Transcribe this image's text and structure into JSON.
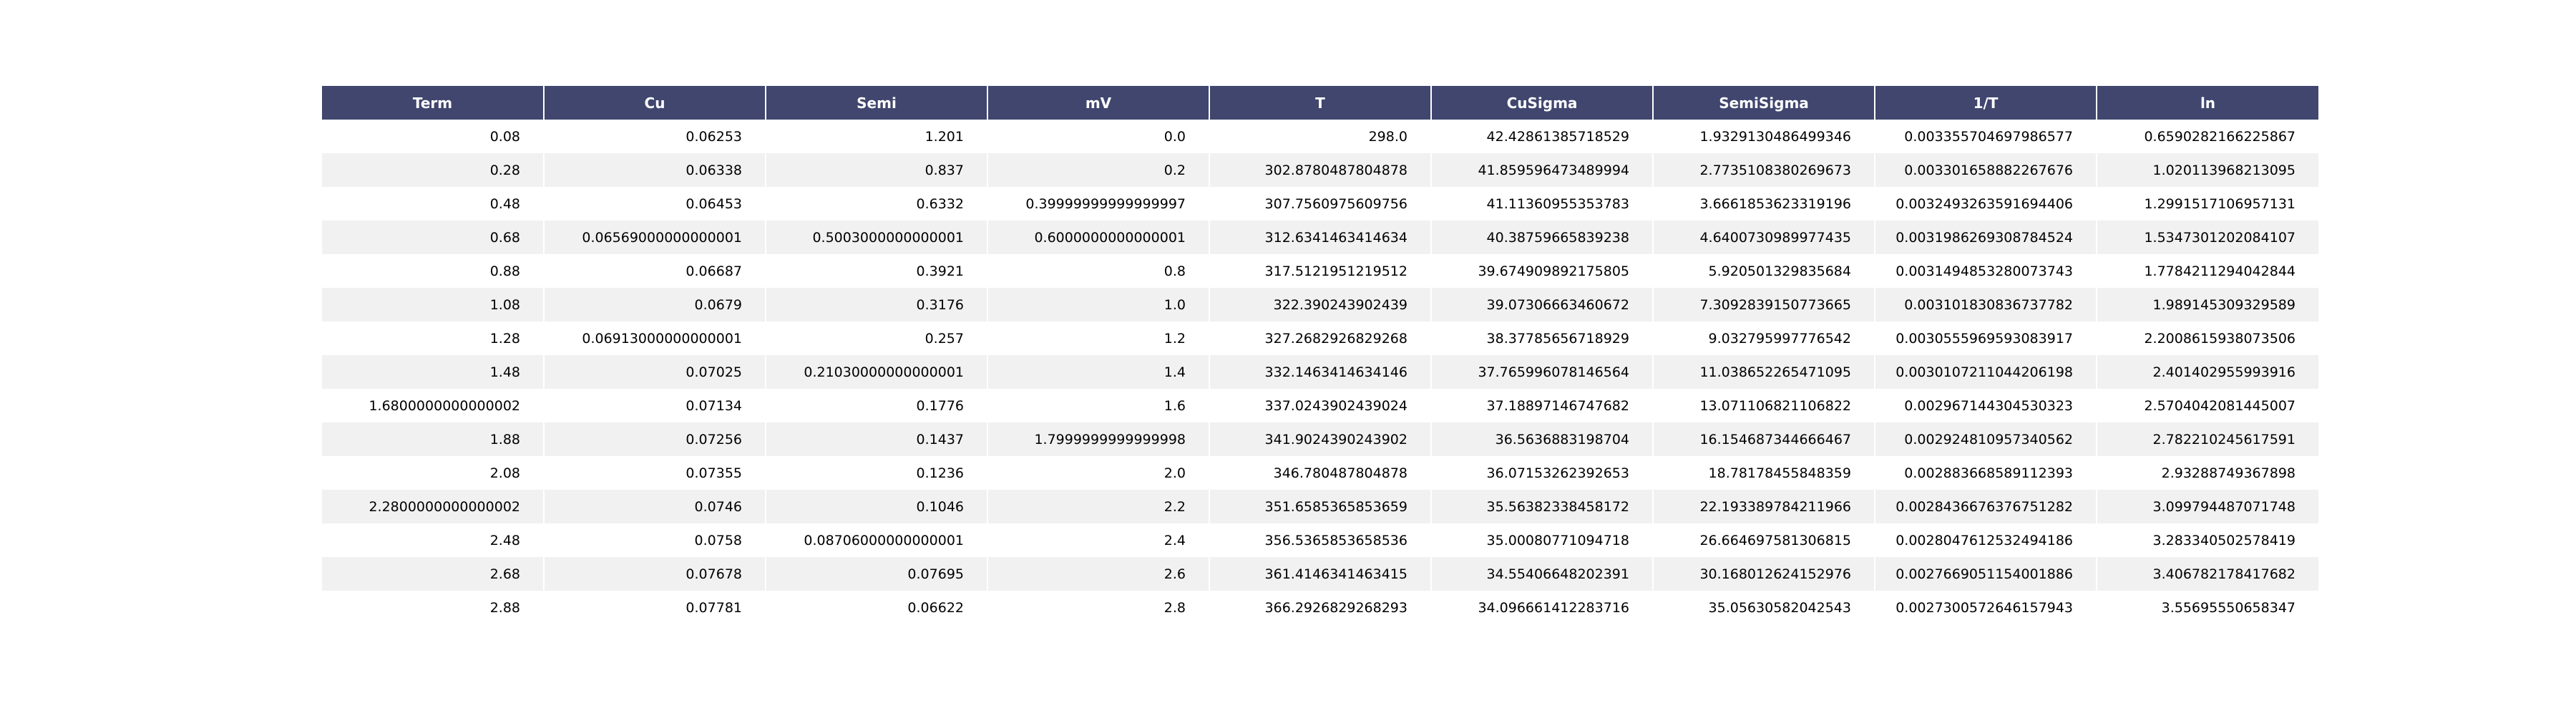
{
  "chart_data": {
    "type": "table",
    "columns": [
      "Term",
      "Cu",
      "Semi",
      "mV",
      "T",
      "CuSigma",
      "SemiSigma",
      "1/T",
      "ln"
    ],
    "rows": [
      [
        "0.08",
        "0.06253",
        "1.201",
        "0.0",
        "298.0",
        "42.42861385718529",
        "1.9329130486499346",
        "0.003355704697986577",
        "0.6590282166225867"
      ],
      [
        "0.28",
        "0.06338",
        "0.837",
        "0.2",
        "302.8780487804878",
        "41.859596473489994",
        "2.7735108380269673",
        "0.003301658882267676",
        "1.020113968213095"
      ],
      [
        "0.48",
        "0.06453",
        "0.6332",
        "0.39999999999999997",
        "307.7560975609756",
        "41.11360955353783",
        "3.6661853623319196",
        "0.0032493263591694406",
        "1.2991517106957131"
      ],
      [
        "0.68",
        "0.06569000000000001",
        "0.5003000000000001",
        "0.6000000000000001",
        "312.6341463414634",
        "40.38759665839238",
        "4.6400730989977435",
        "0.0031986269308784524",
        "1.5347301202084107"
      ],
      [
        "0.88",
        "0.06687",
        "0.3921",
        "0.8",
        "317.5121951219512",
        "39.674909892175805",
        "5.920501329835684",
        "0.0031494853280073743",
        "1.7784211294042844"
      ],
      [
        "1.08",
        "0.0679",
        "0.3176",
        "1.0",
        "322.390243902439",
        "39.07306663460672",
        "7.3092839150773665",
        "0.003101830836737782",
        "1.989145309329589"
      ],
      [
        "1.28",
        "0.06913000000000001",
        "0.257",
        "1.2",
        "327.2682926829268",
        "38.37785656718929",
        "9.032795997776542",
        "0.0030555969593083917",
        "2.2008615938073506"
      ],
      [
        "1.48",
        "0.07025",
        "0.21030000000000001",
        "1.4",
        "332.1463414634146",
        "37.765996078146564",
        "11.038652265471095",
        "0.0030107211044206198",
        "2.401402955993916"
      ],
      [
        "1.6800000000000002",
        "0.07134",
        "0.1776",
        "1.6",
        "337.0243902439024",
        "37.18897146747682",
        "13.071106821106822",
        "0.002967144304530323",
        "2.5704042081445007"
      ],
      [
        "1.88",
        "0.07256",
        "0.1437",
        "1.7999999999999998",
        "341.9024390243902",
        "36.5636883198704",
        "16.154687344666467",
        "0.002924810957340562",
        "2.782210245617591"
      ],
      [
        "2.08",
        "0.07355",
        "0.1236",
        "2.0",
        "346.780487804878",
        "36.07153262392653",
        "18.78178455848359",
        "0.002883668589112393",
        "2.93288749367898"
      ],
      [
        "2.2800000000000002",
        "0.0746",
        "0.1046",
        "2.2",
        "351.6585365853659",
        "35.56382338458172",
        "22.193389784211966",
        "0.0028436676376751282",
        "3.099794487071748"
      ],
      [
        "2.48",
        "0.0758",
        "0.08706000000000001",
        "2.4",
        "356.5365853658536",
        "35.00080771094718",
        "26.664697581306815",
        "0.0028047612532494186",
        "3.283340502578419"
      ],
      [
        "2.68",
        "0.07678",
        "0.07695",
        "2.6",
        "361.4146341463415",
        "34.55406648202391",
        "30.168012624152976",
        "0.0027669051154001886",
        "3.406782178417682"
      ],
      [
        "2.88",
        "0.07781",
        "0.06622",
        "2.8",
        "366.2926829268293",
        "34.096661412283716",
        "35.05630582042543",
        "0.0027300572646157943",
        "3.55695550658347"
      ]
    ]
  },
  "colors": {
    "header_bg": "#40466e",
    "header_text": "#ffffff",
    "stripe": "#f1f1f2"
  }
}
